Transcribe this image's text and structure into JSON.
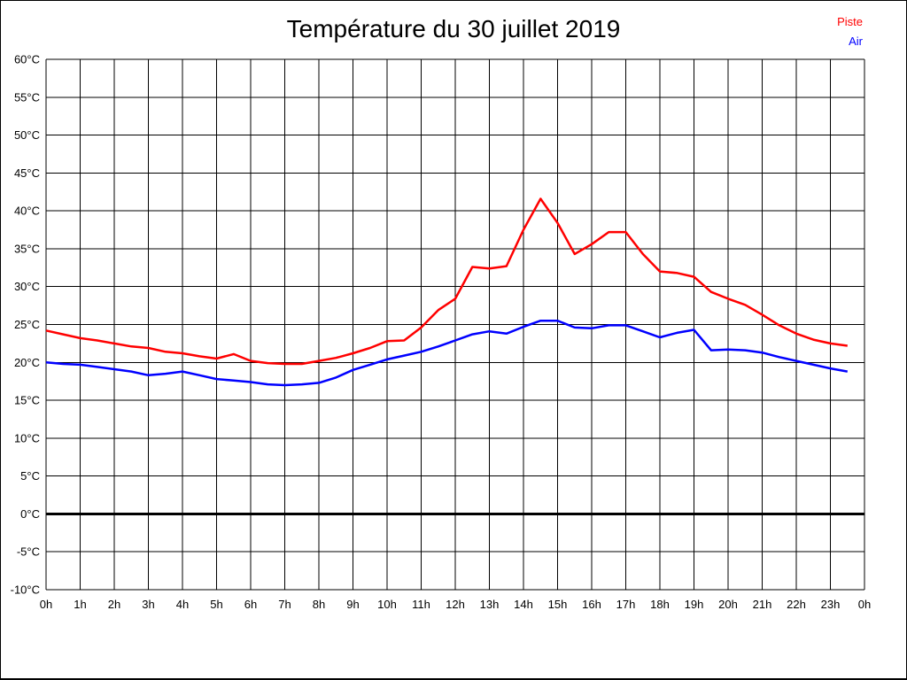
{
  "title": "Température du 30 juillet 2019",
  "legend": [
    {
      "label": "Piste",
      "color": "#ff0000"
    },
    {
      "label": "Air",
      "color": "#0000ff"
    }
  ],
  "colors": {
    "piste_line": "#ff0000",
    "air_line": "#0000ff",
    "grid": "#000000",
    "zero_line": "#000000",
    "background": "#ffffff",
    "text": "#000000"
  },
  "chart_data": {
    "type": "line",
    "title": "Température du 30 juillet 2019",
    "xlabel": "",
    "ylabel": "",
    "xlim": [
      0,
      24
    ],
    "ylim": [
      -10,
      60
    ],
    "grid": true,
    "zero_line_bold": true,
    "legend_position": "top-right",
    "x_tick_labels": [
      "0h",
      "1h",
      "2h",
      "3h",
      "4h",
      "5h",
      "6h",
      "7h",
      "8h",
      "9h",
      "10h",
      "11h",
      "12h",
      "13h",
      "14h",
      "15h",
      "16h",
      "17h",
      "18h",
      "19h",
      "20h",
      "21h",
      "22h",
      "23h",
      "0h"
    ],
    "y_tick_values": [
      60,
      55,
      50,
      45,
      40,
      35,
      30,
      25,
      20,
      15,
      10,
      5,
      0,
      -5,
      -10
    ],
    "y_tick_labels": [
      "60°C",
      "55°C",
      "50°C",
      "45°C",
      "40°C",
      "35°C",
      "30°C",
      "25°C",
      "20°C",
      "15°C",
      "10°C",
      "5°C",
      "0°C",
      "-5°C",
      "-10°C"
    ],
    "x_unit": "hours",
    "y_unit": "°C",
    "x": [
      0,
      0.5,
      1,
      1.5,
      2,
      2.5,
      3,
      3.5,
      4,
      4.5,
      5,
      5.5,
      6,
      6.5,
      7,
      7.5,
      8,
      8.5,
      9,
      9.5,
      10,
      10.5,
      11,
      11.5,
      12,
      12.5,
      13,
      13.5,
      14,
      14.5,
      15,
      15.5,
      16,
      16.5,
      17,
      17.5,
      18,
      18.5,
      19,
      19.5,
      20,
      20.5,
      21,
      21.5,
      22,
      22.5,
      23,
      23.5
    ],
    "series": [
      {
        "name": "Piste",
        "color": "#ff0000",
        "values": [
          24.2,
          23.7,
          23.2,
          22.9,
          22.5,
          22.1,
          21.9,
          21.4,
          21.2,
          20.8,
          20.5,
          21.1,
          20.2,
          19.9,
          19.8,
          19.8,
          20.2,
          20.6,
          21.2,
          21.9,
          22.8,
          22.9,
          24.6,
          26.9,
          28.4,
          32.6,
          32.4,
          32.7,
          37.5,
          41.6,
          38.4,
          34.3,
          35.6,
          37.2,
          37.2,
          34.3,
          32.0,
          31.8,
          31.3,
          29.3,
          28.4,
          27.6,
          26.3,
          24.9,
          23.8,
          23.0,
          22.5,
          22.2
        ]
      },
      {
        "name": "Air",
        "color": "#0000ff",
        "values": [
          20.0,
          19.8,
          19.7,
          19.4,
          19.1,
          18.8,
          18.3,
          18.5,
          18.8,
          18.3,
          17.8,
          17.6,
          17.4,
          17.1,
          17.0,
          17.1,
          17.3,
          18.0,
          19.0,
          19.7,
          20.4,
          20.9,
          21.4,
          22.1,
          22.9,
          23.7,
          24.1,
          23.8,
          24.7,
          25.5,
          25.5,
          24.6,
          24.5,
          24.9,
          24.9,
          24.1,
          23.3,
          23.9,
          24.3,
          21.6,
          21.7,
          21.6,
          21.3,
          20.7,
          20.2,
          19.7,
          19.2,
          18.8
        ]
      }
    ]
  }
}
